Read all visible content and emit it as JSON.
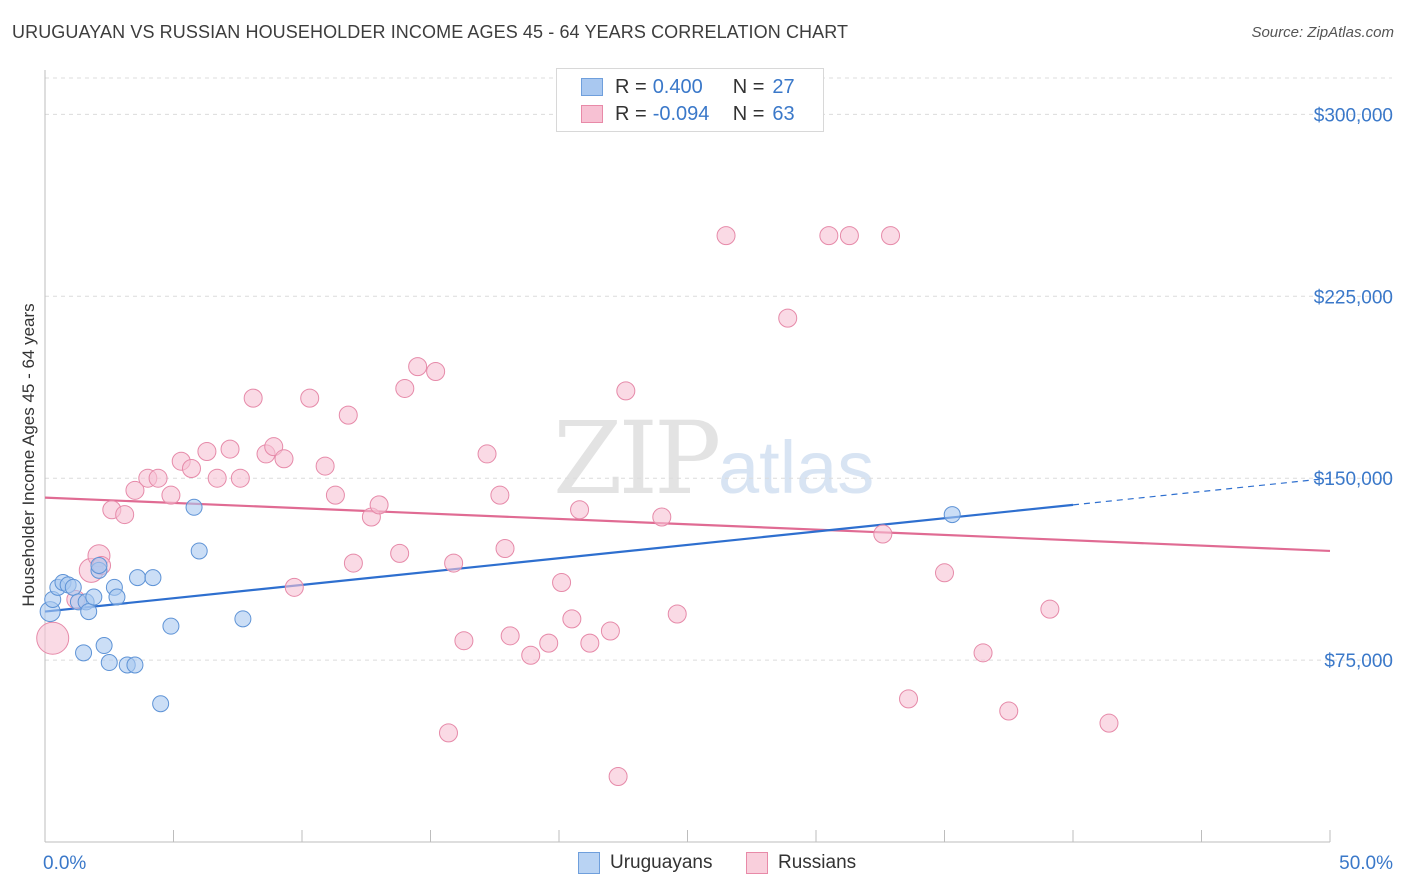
{
  "header": {
    "title": "URUGUAYAN VS RUSSIAN HOUSEHOLDER INCOME AGES 45 - 64 YEARS CORRELATION CHART",
    "source": "Source: ZipAtlas.com"
  },
  "watermark": {
    "zip": "ZIP",
    "atlas": "atlas"
  },
  "legend": {
    "rows": [
      {
        "r_label": "R =",
        "r_value": "0.400",
        "n_label": "N =",
        "n_value": "27",
        "color": "#a9c8f0",
        "border": "#6f9fdc"
      },
      {
        "r_label": "R =",
        "r_value": "-0.094",
        "n_label": "N =",
        "n_value": "63",
        "color": "#f7c1d3",
        "border": "#e88aa8"
      }
    ]
  },
  "bottom_legend": {
    "items": [
      {
        "label": "Uruguayans",
        "color": "#b9d3f3",
        "border": "#6f9fdc"
      },
      {
        "label": "Russians",
        "color": "#f9cfdc",
        "border": "#e88aa8"
      }
    ]
  },
  "colors": {
    "blue_fill": "#a9c8f0",
    "blue_stroke": "#5e93d6",
    "blue_line": "#2e6fcf",
    "pink_fill": "#f7c1d3",
    "pink_stroke": "#e68aa9",
    "pink_line": "#e06b93",
    "grid": "#dcdcdc",
    "tick_text": "#3a78c9"
  },
  "chart_data": {
    "type": "scatter",
    "title": "URUGUAYAN VS RUSSIAN HOUSEHOLDER INCOME AGES 45 - 64 YEARS CORRELATION CHART",
    "xlabel": "",
    "ylabel": "Householder Income Ages 45 - 64 years",
    "xlim": [
      0,
      50
    ],
    "ylim": [
      0,
      315000
    ],
    "x_tick_labels": [
      "0.0%",
      "50.0%"
    ],
    "y_ticks": [
      {
        "value": 75000,
        "label": "$75,000"
      },
      {
        "value": 150000,
        "label": "$150,000"
      },
      {
        "value": 225000,
        "label": "$225,000"
      },
      {
        "value": 300000,
        "label": "$300,000"
      }
    ],
    "grid": true,
    "series": [
      {
        "name": "Uruguayans",
        "trend": {
          "x0": 0,
          "y0": 95000,
          "x1": 40,
          "y1": 139000,
          "dash_to_x": 50,
          "dash_to_y": 150000
        },
        "points": [
          [
            0.2,
            95000,
            10
          ],
          [
            0.3,
            100000,
            8
          ],
          [
            0.5,
            105000,
            8
          ],
          [
            0.7,
            107000,
            8
          ],
          [
            0.9,
            106000,
            8
          ],
          [
            1.1,
            105000,
            8
          ],
          [
            1.3,
            99000,
            8
          ],
          [
            1.5,
            78000,
            8
          ],
          [
            1.6,
            99000,
            8
          ],
          [
            1.7,
            95000,
            8
          ],
          [
            1.9,
            101000,
            8
          ],
          [
            2.1,
            112000,
            8
          ],
          [
            2.1,
            114000,
            8
          ],
          [
            2.3,
            81000,
            8
          ],
          [
            2.5,
            74000,
            8
          ],
          [
            2.7,
            105000,
            8
          ],
          [
            2.8,
            101000,
            8
          ],
          [
            3.2,
            73000,
            8
          ],
          [
            3.5,
            73000,
            8
          ],
          [
            3.6,
            109000,
            8
          ],
          [
            4.2,
            109000,
            8
          ],
          [
            4.5,
            57000,
            8
          ],
          [
            4.9,
            89000,
            8
          ],
          [
            5.8,
            138000,
            8
          ],
          [
            6.0,
            120000,
            8
          ],
          [
            7.7,
            92000,
            8
          ],
          [
            35.3,
            135000,
            8
          ]
        ]
      },
      {
        "name": "Russians",
        "trend": {
          "x0": 0,
          "y0": 142000,
          "x1": 50,
          "y1": 120000
        },
        "points": [
          [
            0.3,
            84000,
            16
          ],
          [
            1.2,
            100000,
            9
          ],
          [
            1.8,
            112000,
            12
          ],
          [
            2.1,
            118000,
            11
          ],
          [
            2.2,
            114000,
            9
          ],
          [
            2.6,
            137000,
            9
          ],
          [
            3.1,
            135000,
            9
          ],
          [
            3.5,
            145000,
            9
          ],
          [
            4.0,
            150000,
            9
          ],
          [
            4.4,
            150000,
            9
          ],
          [
            4.9,
            143000,
            9
          ],
          [
            5.3,
            157000,
            9
          ],
          [
            5.7,
            154000,
            9
          ],
          [
            6.3,
            161000,
            9
          ],
          [
            6.7,
            150000,
            9
          ],
          [
            7.2,
            162000,
            9
          ],
          [
            7.6,
            150000,
            9
          ],
          [
            8.1,
            183000,
            9
          ],
          [
            8.6,
            160000,
            9
          ],
          [
            8.9,
            163000,
            9
          ],
          [
            9.3,
            158000,
            9
          ],
          [
            9.7,
            105000,
            9
          ],
          [
            10.3,
            183000,
            9
          ],
          [
            10.9,
            155000,
            9
          ],
          [
            11.3,
            143000,
            9
          ],
          [
            11.8,
            176000,
            9
          ],
          [
            12.0,
            115000,
            9
          ],
          [
            12.7,
            134000,
            9
          ],
          [
            13.0,
            139000,
            9
          ],
          [
            13.8,
            119000,
            9
          ],
          [
            14.0,
            187000,
            9
          ],
          [
            14.5,
            196000,
            9
          ],
          [
            15.2,
            194000,
            9
          ],
          [
            15.7,
            45000,
            9
          ],
          [
            15.9,
            115000,
            9
          ],
          [
            16.3,
            83000,
            9
          ],
          [
            17.2,
            160000,
            9
          ],
          [
            17.7,
            143000,
            9
          ],
          [
            17.9,
            121000,
            9
          ],
          [
            18.1,
            85000,
            9
          ],
          [
            18.9,
            77000,
            9
          ],
          [
            19.6,
            82000,
            9
          ],
          [
            20.1,
            107000,
            9
          ],
          [
            20.5,
            92000,
            9
          ],
          [
            20.8,
            137000,
            9
          ],
          [
            21.2,
            82000,
            9
          ],
          [
            22.0,
            87000,
            9
          ],
          [
            22.3,
            27000,
            9
          ],
          [
            22.6,
            186000,
            9
          ],
          [
            24.0,
            134000,
            9
          ],
          [
            24.6,
            94000,
            9
          ],
          [
            26.5,
            250000,
            9
          ],
          [
            28.9,
            216000,
            9
          ],
          [
            30.5,
            250000,
            9
          ],
          [
            31.3,
            250000,
            9
          ],
          [
            32.6,
            127000,
            9
          ],
          [
            32.9,
            250000,
            9
          ],
          [
            33.6,
            59000,
            9
          ],
          [
            35.0,
            111000,
            9
          ],
          [
            36.5,
            78000,
            9
          ],
          [
            37.5,
            54000,
            9
          ],
          [
            39.1,
            96000,
            9
          ],
          [
            41.4,
            49000,
            9
          ]
        ]
      }
    ]
  }
}
